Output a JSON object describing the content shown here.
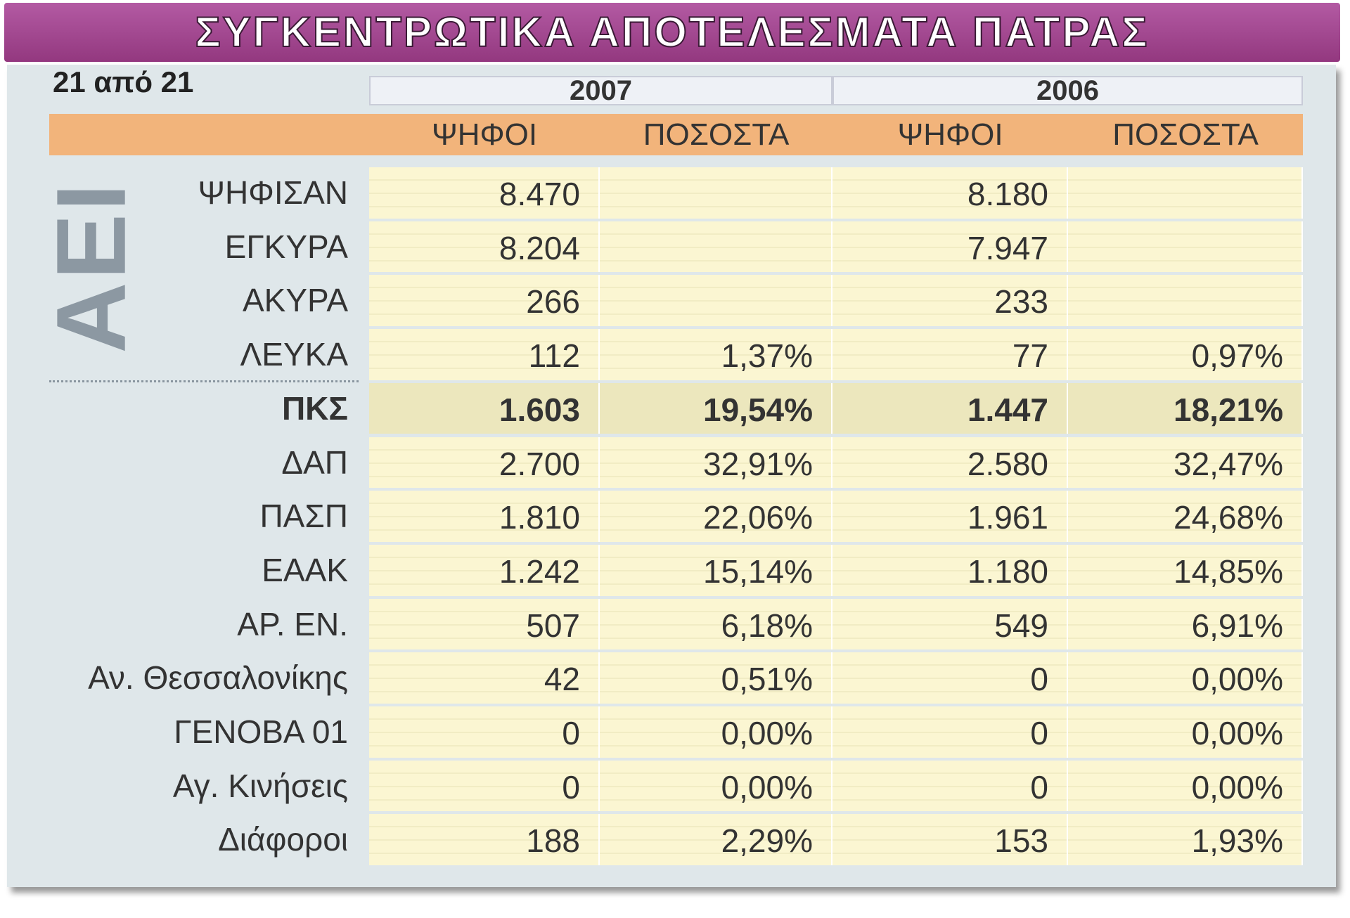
{
  "header": {
    "title": "ΣΥΓΚΕΝΤΡΩΤΙΚΑ ΑΠΟΤΕΛΕΣΜΑΤΑ ΠΑΤΡΑΣ",
    "subtitle": "21 από 21",
    "side_label": "ΑΕΙ"
  },
  "table": {
    "years": [
      "2007",
      "2006"
    ],
    "columns": [
      "ΨΗΦΟΙ",
      "ΠΟΣΟΣΤΑ",
      "ΨΗΦΟΙ",
      "ΠΟΣΟΣΤΑ"
    ],
    "highlight_row": 4,
    "rows": [
      [
        "ΨΗΦΙΣΑΝ",
        "8.470",
        null,
        "8.180",
        null
      ],
      [
        "ΕΓΚΥΡΑ",
        "8.204",
        null,
        "7.947",
        null
      ],
      [
        "ΑΚΥΡΑ",
        "266",
        null,
        "233",
        null
      ],
      [
        "ΛΕΥΚΑ",
        "112",
        "1,37%",
        "77",
        "0,97%"
      ],
      [
        "ΠΚΣ",
        "1.603",
        "19,54%",
        "1.447",
        "18,21%"
      ],
      [
        "ΔΑΠ",
        "2.700",
        "32,91%",
        "2.580",
        "32,47%"
      ],
      [
        "ΠΑΣΠ",
        "1.810",
        "22,06%",
        "1.961",
        "24,68%"
      ],
      [
        "ΕΑΑΚ",
        "1.242",
        "15,14%",
        "1.180",
        "14,85%"
      ],
      [
        "ΑΡ. ΕΝ.",
        "507",
        "6,18%",
        "549",
        "6,91%"
      ],
      [
        "Αν. Θεσσαλονίκης",
        "42",
        "0,51%",
        "0",
        "0,00%"
      ],
      [
        "ΓΕΝΟΒΑ 01",
        "0",
        "0,00%",
        "0",
        "0,00%"
      ],
      [
        "Αγ. Κινήσεις",
        "0",
        "0,00%",
        "0",
        "0,00%"
      ],
      [
        "Διάφοροι",
        "188",
        "2,29%",
        "153",
        "1,93%"
      ]
    ]
  }
}
